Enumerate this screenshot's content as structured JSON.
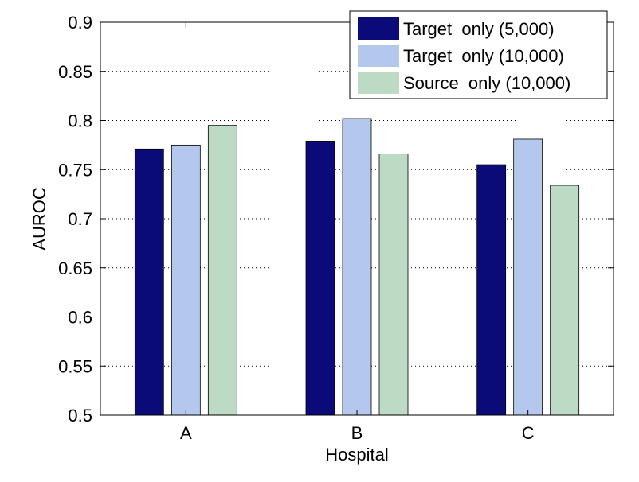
{
  "chart_data": {
    "type": "bar",
    "categories": [
      "A",
      "B",
      "C"
    ],
    "series": [
      {
        "name": "Target  only (5,000)",
        "values": [
          0.771,
          0.779,
          0.755
        ],
        "color": "#0a0a78"
      },
      {
        "name": "Target  only (10,000)",
        "values": [
          0.775,
          0.802,
          0.781
        ],
        "color": "#b4c8ee"
      },
      {
        "name": "Source  only (10,000)",
        "values": [
          0.795,
          0.766,
          0.734
        ],
        "color": "#bcdac4"
      }
    ],
    "title": "",
    "xlabel": "Hospital",
    "ylabel": "AUROC",
    "ylim": [
      0.5,
      0.9
    ],
    "yticks": [
      "0.5",
      "0.55",
      "0.6",
      "0.65",
      "0.7",
      "0.75",
      "0.8",
      "0.85",
      "0.9"
    ],
    "grid": "horizontal dotted",
    "legend_position": "top-right"
  }
}
